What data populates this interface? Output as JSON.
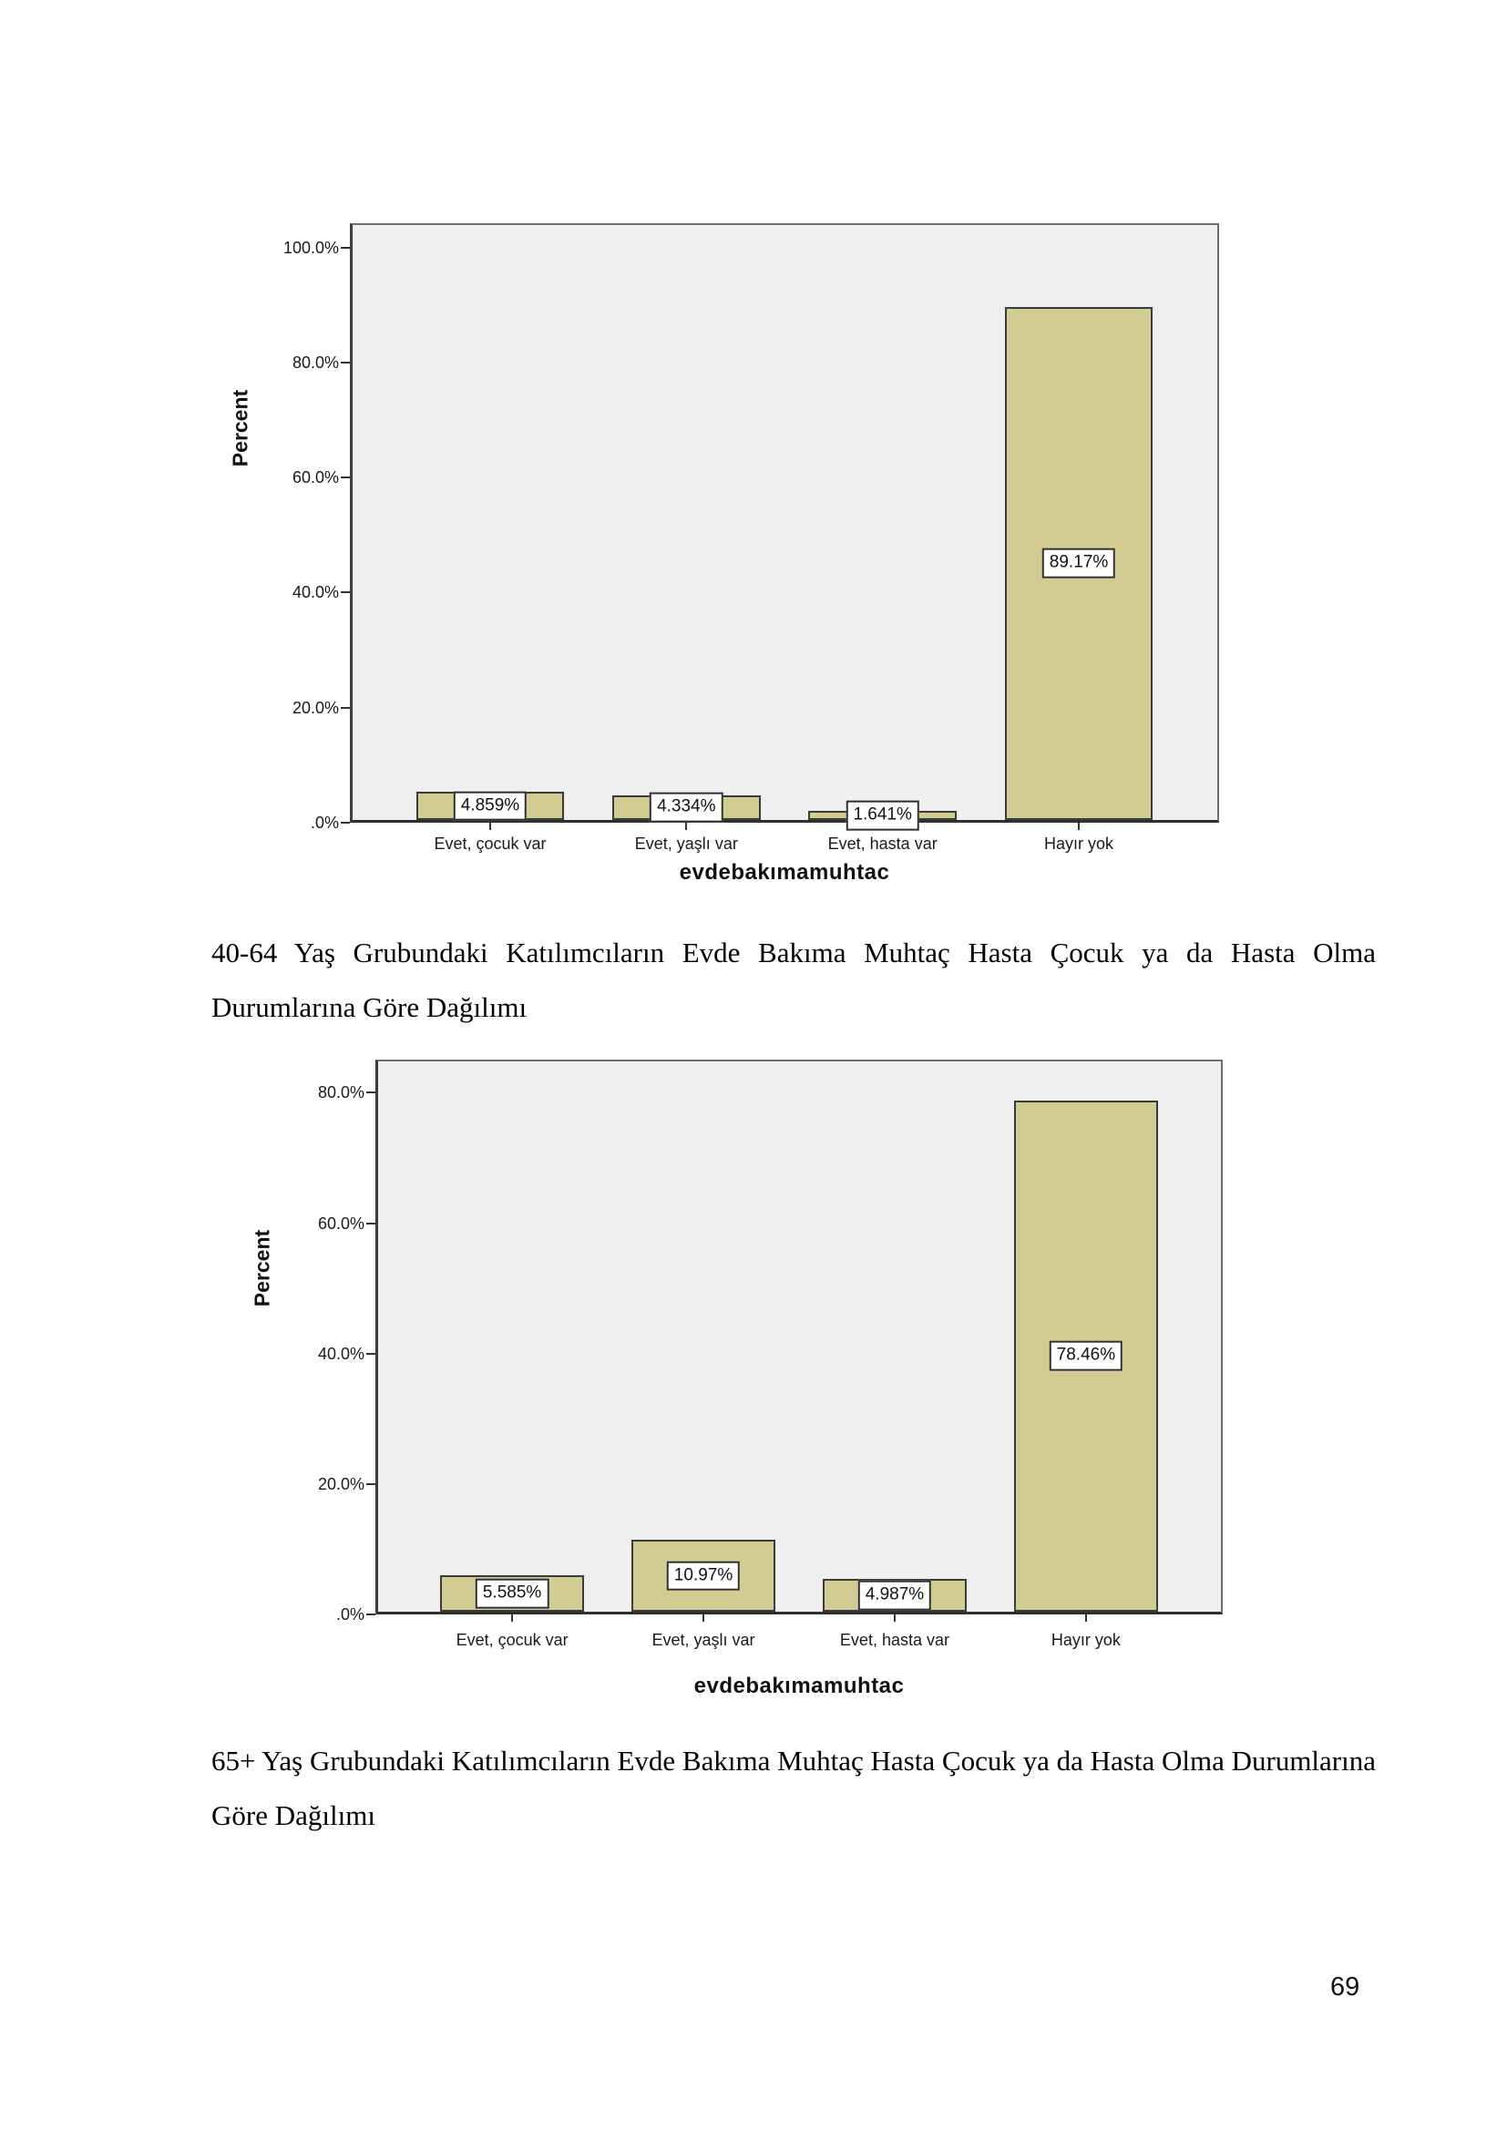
{
  "page": {
    "number": "69"
  },
  "captions": [
    {
      "text": "40-64 Yaş Grubundaki Katılımcıların Evde Bakıma Muhtaç Hasta Çocuk ya da Hasta Olma Durumlarına Göre Dağılımı"
    },
    {
      "text": "65+ Yaş Grubundaki Katılımcıların Evde Bakıma Muhtaç Hasta Çocuk ya da Hasta Olma Durumlarına Göre Dağılımı"
    }
  ],
  "chart_data": [
    {
      "type": "bar",
      "title": "",
      "xlabel": "evdebakımamuhtac",
      "ylabel": "Percent",
      "categories": [
        "Evet, çocuk var",
        "Evet, yaşlı var",
        "Evet, hasta var",
        "Hayır yok"
      ],
      "values": [
        4.859,
        4.334,
        1.641,
        89.17
      ],
      "bar_labels": [
        "4.859%",
        "4.334%",
        "1.641%",
        "89.17%"
      ],
      "yticks": [
        100,
        80,
        60,
        40,
        20,
        0
      ],
      "ytick_labels": [
        "100.0%",
        "80.0%",
        "60.0%",
        "40.0%",
        "20.0%",
        ".0%"
      ],
      "ylim": [
        0,
        104.2
      ],
      "grid": false,
      "legend": null,
      "colors": {
        "bar": "#d3cc92",
        "bar_border": "#3a3a3a",
        "plot_bg": "#efeff0",
        "label_box_bg": "#ffffff",
        "label_box_border": "#2f2f2f",
        "axis": "#333333",
        "text": "#1a1a1a"
      }
    },
    {
      "type": "bar",
      "title": "",
      "xlabel": "evdebakımamuhtac",
      "ylabel": "Percent",
      "categories": [
        "Evet, çocuk var",
        "Evet, yaşlı var",
        "Evet, hasta var",
        "Hayır yok"
      ],
      "values": [
        5.585,
        10.97,
        4.987,
        78.46
      ],
      "bar_labels": [
        "5.585%",
        "10.97%",
        "4.987%",
        "78.46%"
      ],
      "yticks": [
        80,
        60,
        40,
        20,
        0
      ],
      "ytick_labels": [
        "80.0%",
        "60.0%",
        "40.0%",
        "20.0%",
        ".0%"
      ],
      "ylim": [
        0,
        85.1
      ],
      "grid": false,
      "legend": null,
      "colors": {
        "bar": "#d3cc92",
        "bar_border": "#3a3a3a",
        "plot_bg": "#efeff0",
        "label_box_bg": "#ffffff",
        "label_box_border": "#2f2f2f",
        "axis": "#333333",
        "text": "#1a1a1a"
      }
    }
  ]
}
